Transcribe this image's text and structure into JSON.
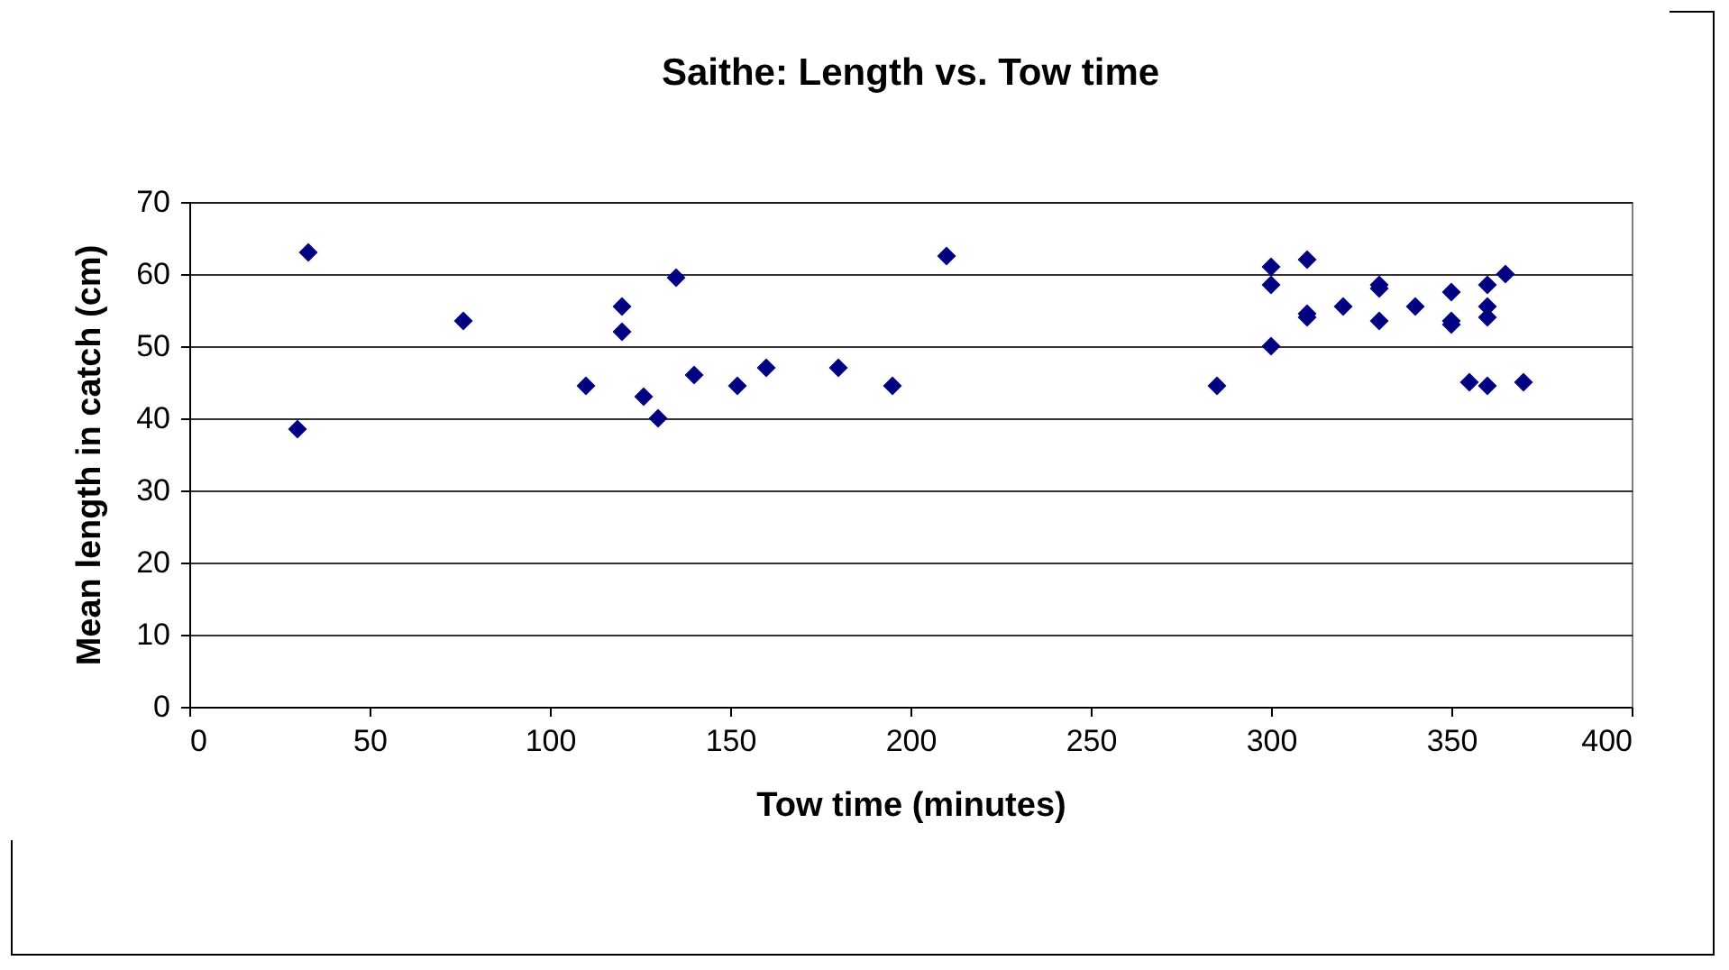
{
  "chart_data": {
    "type": "scatter",
    "title": "Saithe:  Length vs. Tow time",
    "xlabel": "Tow time (minutes)",
    "ylabel": "Mean length in catch (cm)",
    "x": [
      30,
      33,
      76,
      110,
      120,
      120,
      126,
      130,
      135,
      140,
      152,
      160,
      180,
      195,
      210,
      285,
      300,
      300,
      300,
      310,
      310,
      310,
      320,
      330,
      330,
      330,
      340,
      350,
      350,
      350,
      355,
      360,
      360,
      360,
      360,
      365,
      370
    ],
    "series": [
      {
        "color": "#000080",
        "values": [
          38.5,
          63,
          53.5,
          44.5,
          55.5,
          52,
          43,
          40,
          59.5,
          46,
          44.5,
          47,
          47,
          44.5,
          62.5,
          44.5,
          61,
          58.5,
          50,
          62,
          54.5,
          54,
          55.5,
          58.5,
          58,
          53.5,
          55.5,
          57.5,
          53.5,
          53,
          45,
          58.5,
          55.5,
          54,
          44.5,
          60,
          45
        ]
      }
    ],
    "xlim": [
      0,
      400
    ],
    "xticks": [
      0,
      50,
      100,
      150,
      200,
      250,
      300,
      350,
      400
    ],
    "ylim": [
      0,
      70
    ],
    "yticks": [
      0,
      10,
      20,
      30,
      40,
      50,
      60,
      70
    ],
    "grid": "y",
    "legend": false,
    "marker": "diamond"
  }
}
